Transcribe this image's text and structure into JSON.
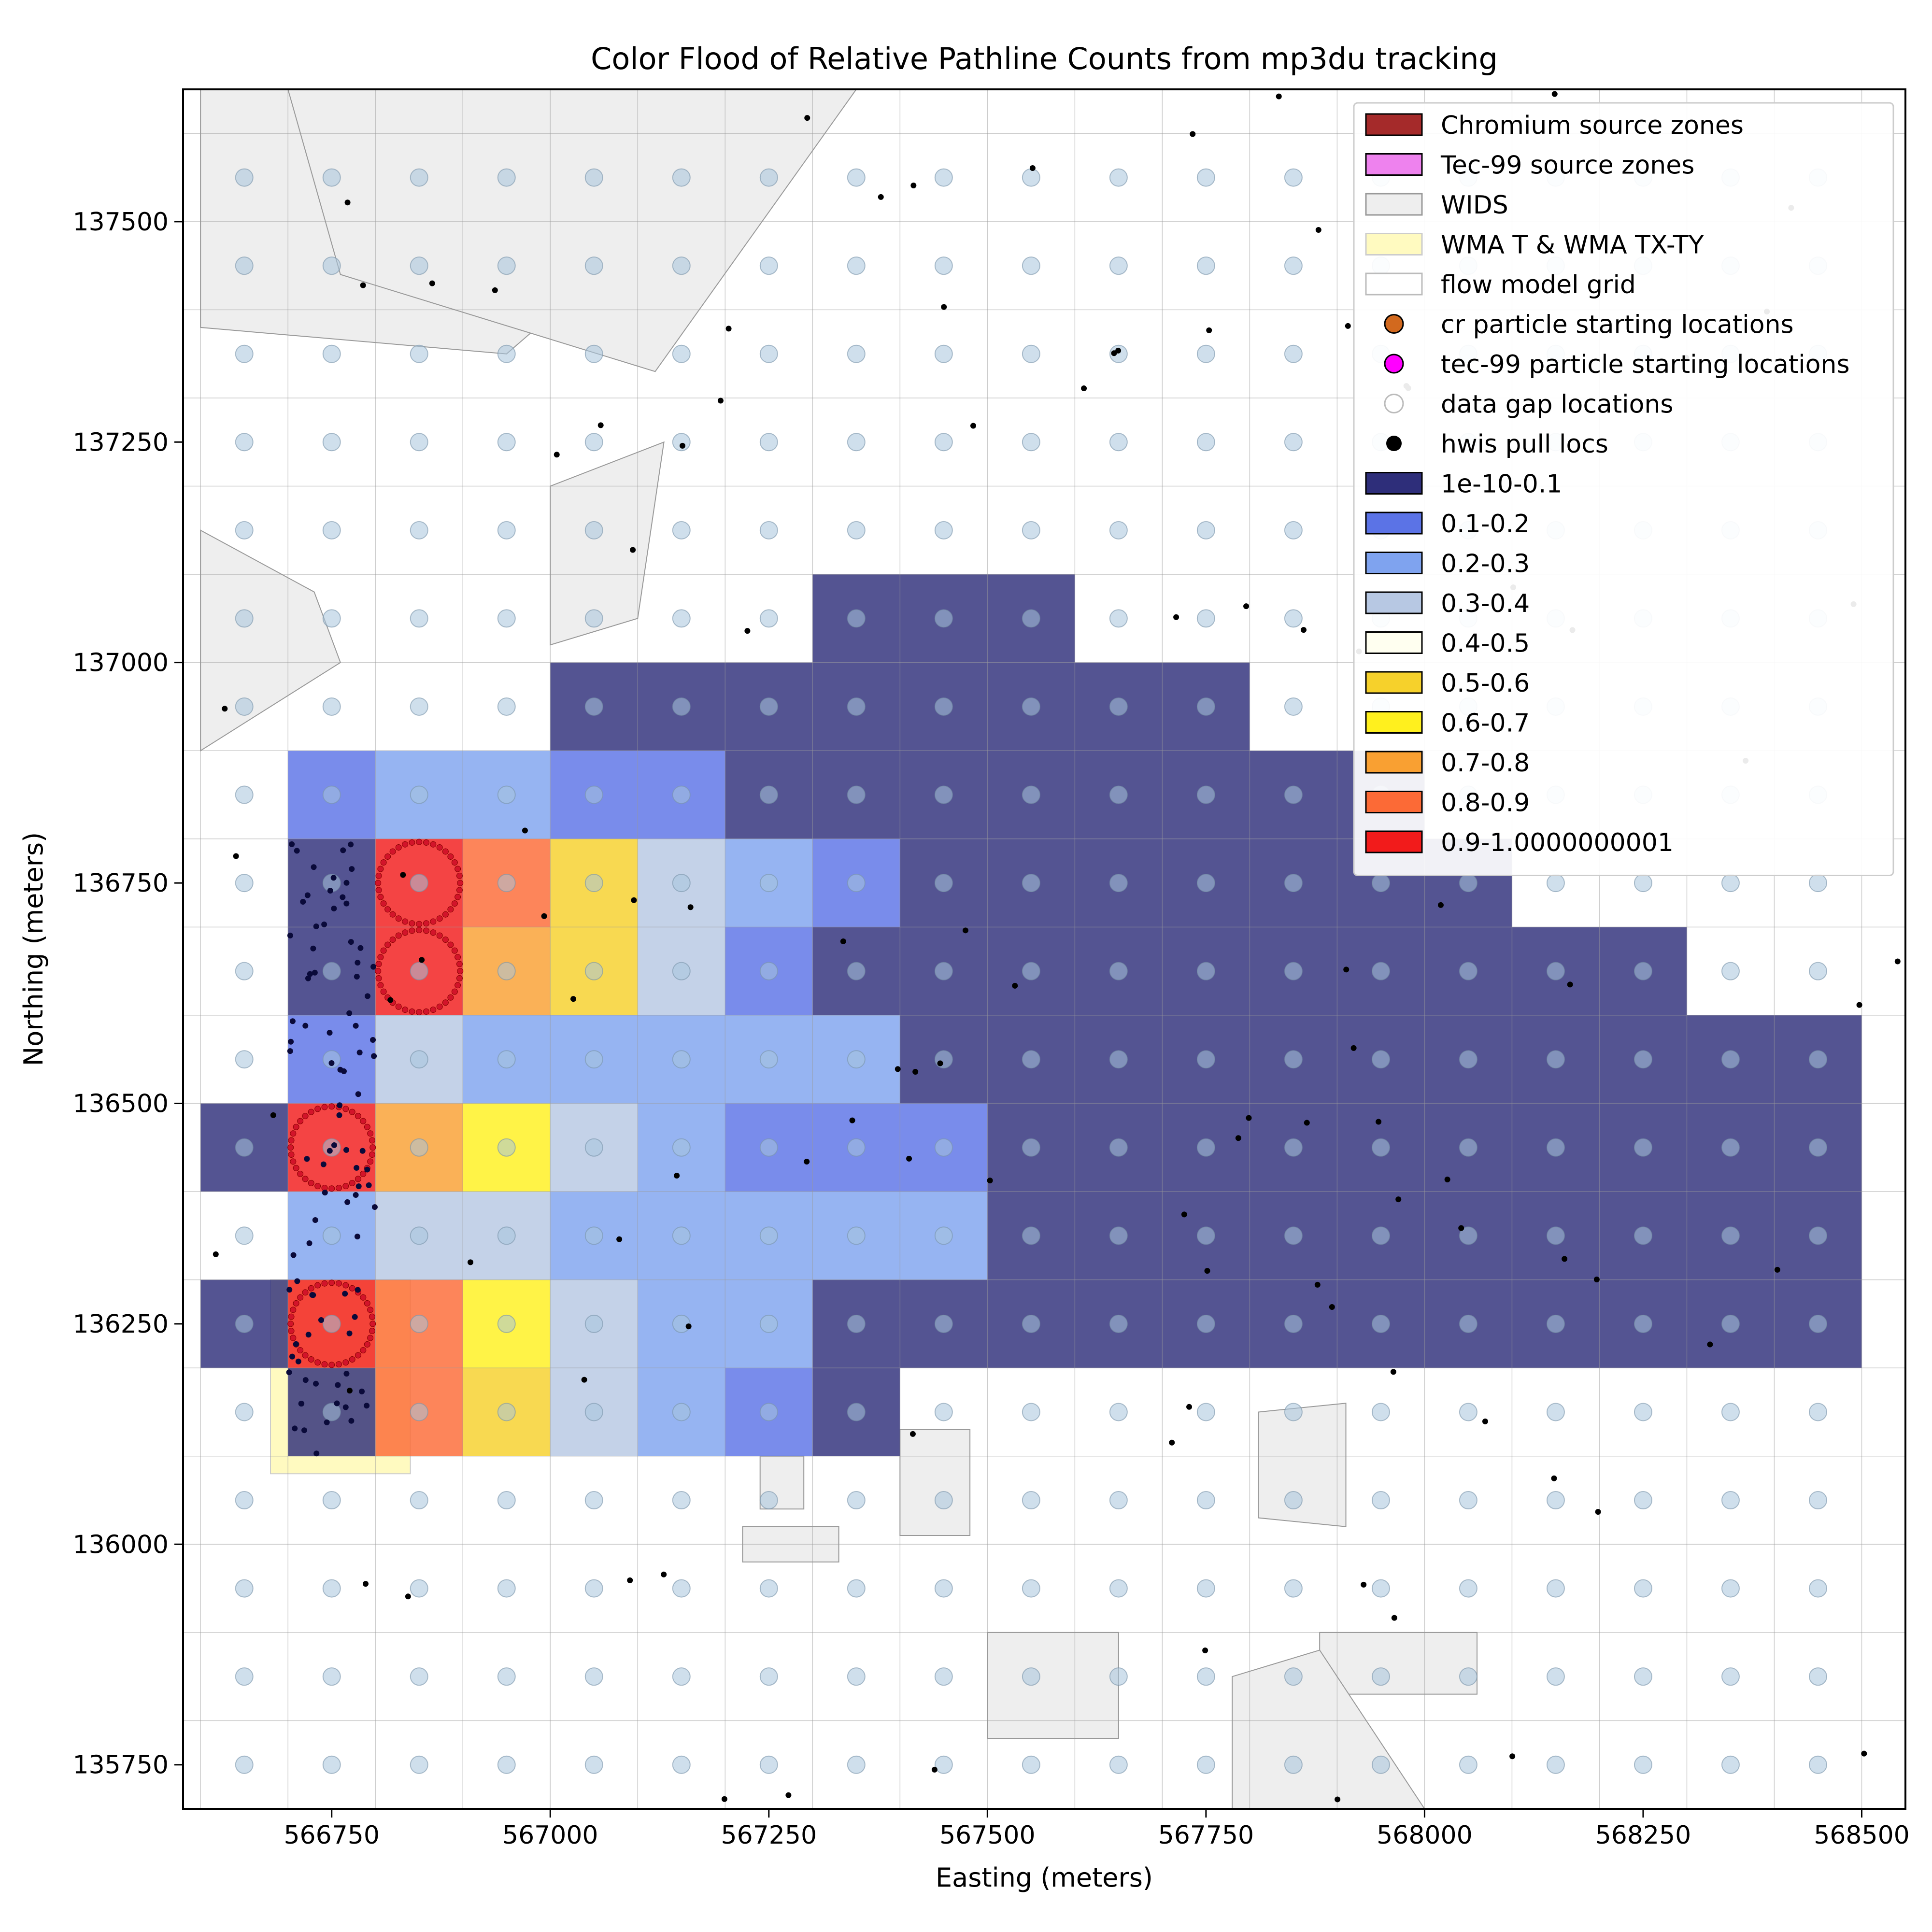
{
  "chart_data": {
    "type": "heatmap",
    "title": "Color Flood of Relative Pathline Counts from mp3du tracking",
    "xlabel": "Easting (meters)",
    "ylabel": "Northing (meters)",
    "xlim": [
      566580,
      568550
    ],
    "ylim": [
      135700,
      137650
    ],
    "xticks": [
      566750,
      567000,
      567250,
      567500,
      567750,
      568000,
      568250,
      568500
    ],
    "yticks": [
      135750,
      136000,
      136250,
      136500,
      136750,
      137000,
      137250,
      137500
    ],
    "grid_origin": [
      566600,
      135700
    ],
    "cell_size": 100,
    "bin_colors": [
      "#2e2e7a",
      "#5b73e6",
      "#7fa3ef",
      "#b7c8e3",
      "#fffff0",
      "#f6d12b",
      "#fff01e",
      "#f9a032",
      "#fc6a36",
      "#f21b1b"
    ],
    "cells": [
      {
        "row": 13,
        "c0": 7,
        "c1": 9,
        "bin": 0
      },
      {
        "row": 12,
        "c0": 4,
        "c1": 11,
        "bin": 0
      },
      {
        "row": 11,
        "c0": 1,
        "c1": 1,
        "bin": 1
      },
      {
        "row": 11,
        "c0": 2,
        "c1": 3,
        "bin": 2
      },
      {
        "row": 11,
        "c0": 4,
        "c1": 5,
        "bin": 1
      },
      {
        "row": 11,
        "c0": 6,
        "c1": 13,
        "bin": 0
      },
      {
        "row": 10,
        "c0": 1,
        "c1": 1,
        "bin": 0
      },
      {
        "row": 10,
        "c0": 2,
        "c1": 2,
        "bin": 9
      },
      {
        "row": 10,
        "c0": 3,
        "c1": 3,
        "bin": 8
      },
      {
        "row": 10,
        "c0": 4,
        "c1": 4,
        "bin": 5
      },
      {
        "row": 10,
        "c0": 5,
        "c1": 5,
        "bin": 3
      },
      {
        "row": 10,
        "c0": 6,
        "c1": 6,
        "bin": 2
      },
      {
        "row": 10,
        "c0": 7,
        "c1": 7,
        "bin": 1
      },
      {
        "row": 10,
        "c0": 8,
        "c1": 14,
        "bin": 0
      },
      {
        "row": 9,
        "c0": 1,
        "c1": 1,
        "bin": 0
      },
      {
        "row": 9,
        "c0": 2,
        "c1": 2,
        "bin": 9
      },
      {
        "row": 9,
        "c0": 3,
        "c1": 3,
        "bin": 7
      },
      {
        "row": 9,
        "c0": 4,
        "c1": 4,
        "bin": 5
      },
      {
        "row": 9,
        "c0": 5,
        "c1": 5,
        "bin": 3
      },
      {
        "row": 9,
        "c0": 6,
        "c1": 6,
        "bin": 1
      },
      {
        "row": 9,
        "c0": 7,
        "c1": 16,
        "bin": 0
      },
      {
        "row": 8,
        "c0": 1,
        "c1": 1,
        "bin": 1
      },
      {
        "row": 8,
        "c0": 2,
        "c1": 2,
        "bin": 3
      },
      {
        "row": 8,
        "c0": 3,
        "c1": 7,
        "bin": 2
      },
      {
        "row": 8,
        "c0": 8,
        "c1": 18,
        "bin": 0
      },
      {
        "row": 7,
        "c0": 0,
        "c1": 0,
        "bin": 0
      },
      {
        "row": 7,
        "c0": 1,
        "c1": 1,
        "bin": 9
      },
      {
        "row": 7,
        "c0": 2,
        "c1": 2,
        "bin": 7
      },
      {
        "row": 7,
        "c0": 3,
        "c1": 3,
        "bin": 6
      },
      {
        "row": 7,
        "c0": 4,
        "c1": 4,
        "bin": 3
      },
      {
        "row": 7,
        "c0": 5,
        "c1": 5,
        "bin": 2
      },
      {
        "row": 7,
        "c0": 6,
        "c1": 8,
        "bin": 1
      },
      {
        "row": 7,
        "c0": 9,
        "c1": 18,
        "bin": 0
      },
      {
        "row": 6,
        "c0": 1,
        "c1": 1,
        "bin": 2
      },
      {
        "row": 6,
        "c0": 2,
        "c1": 2,
        "bin": 3
      },
      {
        "row": 6,
        "c0": 3,
        "c1": 3,
        "bin": 3
      },
      {
        "row": 6,
        "c0": 4,
        "c1": 8,
        "bin": 2
      },
      {
        "row": 6,
        "c0": 9,
        "c1": 18,
        "bin": 0
      },
      {
        "row": 5,
        "c0": 0,
        "c1": 0,
        "bin": 0
      },
      {
        "row": 5,
        "c0": 1,
        "c1": 1,
        "bin": 9
      },
      {
        "row": 5,
        "c0": 2,
        "c1": 2,
        "bin": 8
      },
      {
        "row": 5,
        "c0": 3,
        "c1": 3,
        "bin": 6
      },
      {
        "row": 5,
        "c0": 4,
        "c1": 4,
        "bin": 3
      },
      {
        "row": 5,
        "c0": 5,
        "c1": 6,
        "bin": 2
      },
      {
        "row": 5,
        "c0": 7,
        "c1": 18,
        "bin": 0
      },
      {
        "row": 4,
        "c0": 1,
        "c1": 1,
        "bin": 0
      },
      {
        "row": 4,
        "c0": 2,
        "c1": 2,
        "bin": 8
      },
      {
        "row": 4,
        "c0": 3,
        "c1": 3,
        "bin": 5
      },
      {
        "row": 4,
        "c0": 4,
        "c1": 4,
        "bin": 3
      },
      {
        "row": 4,
        "c0": 5,
        "c1": 5,
        "bin": 2
      },
      {
        "row": 4,
        "c0": 6,
        "c1": 6,
        "bin": 1
      },
      {
        "row": 4,
        "c0": 7,
        "c1": 7,
        "bin": 0
      }
    ],
    "legend_entries": [
      {
        "label": "Chromium source zones",
        "kind": "patch",
        "fill": "#a52a2a",
        "stroke": "#000000"
      },
      {
        "label": "Tec-99 source zones",
        "kind": "patch",
        "fill": "#ee82ee",
        "stroke": "#000000"
      },
      {
        "label": "WIDS",
        "kind": "patch",
        "fill": "#eeeeee",
        "stroke": "#999999"
      },
      {
        "label": "WMA T & WMA TX-TY",
        "kind": "patch",
        "fill": "#fffac0",
        "stroke": "#cccccc"
      },
      {
        "label": "flow model grid",
        "kind": "patch",
        "fill": "#ffffff",
        "stroke": "#bbbbbb"
      },
      {
        "label": "cr particle starting locations",
        "kind": "circle",
        "fill": "#d2691e",
        "stroke": "#000000"
      },
      {
        "label": "tec-99 particle starting locations",
        "kind": "circle",
        "fill": "#ff00ff",
        "stroke": "#000000"
      },
      {
        "label": "data gap locations",
        "kind": "circle",
        "fill": "#ffffff",
        "stroke": "#bbbbbb"
      },
      {
        "label": "hwis pull locs",
        "kind": "dot",
        "fill": "#000000",
        "stroke": "#000000"
      },
      {
        "label": "1e-10-0.1",
        "kind": "patch",
        "fill": "#2e2e7a",
        "stroke": "#000000"
      },
      {
        "label": "0.1-0.2",
        "kind": "patch",
        "fill": "#5b73e6",
        "stroke": "#000000"
      },
      {
        "label": "0.2-0.3",
        "kind": "patch",
        "fill": "#7fa3ef",
        "stroke": "#000000"
      },
      {
        "label": "0.3-0.4",
        "kind": "patch",
        "fill": "#b7c8e3",
        "stroke": "#000000"
      },
      {
        "label": "0.4-0.5",
        "kind": "patch",
        "fill": "#fffff0",
        "stroke": "#000000"
      },
      {
        "label": "0.5-0.6",
        "kind": "patch",
        "fill": "#f6d12b",
        "stroke": "#000000"
      },
      {
        "label": "0.6-0.7",
        "kind": "patch",
        "fill": "#fff01e",
        "stroke": "#000000"
      },
      {
        "label": "0.7-0.8",
        "kind": "patch",
        "fill": "#f9a032",
        "stroke": "#000000"
      },
      {
        "label": "0.8-0.9",
        "kind": "patch",
        "fill": "#fc6a36",
        "stroke": "#000000"
      },
      {
        "label": "0.9-1.0000000001",
        "kind": "patch",
        "fill": "#f21b1b",
        "stroke": "#000000"
      }
    ],
    "legend_position": "upper right",
    "data_gap_point_spacing": 100,
    "grid": true
  }
}
